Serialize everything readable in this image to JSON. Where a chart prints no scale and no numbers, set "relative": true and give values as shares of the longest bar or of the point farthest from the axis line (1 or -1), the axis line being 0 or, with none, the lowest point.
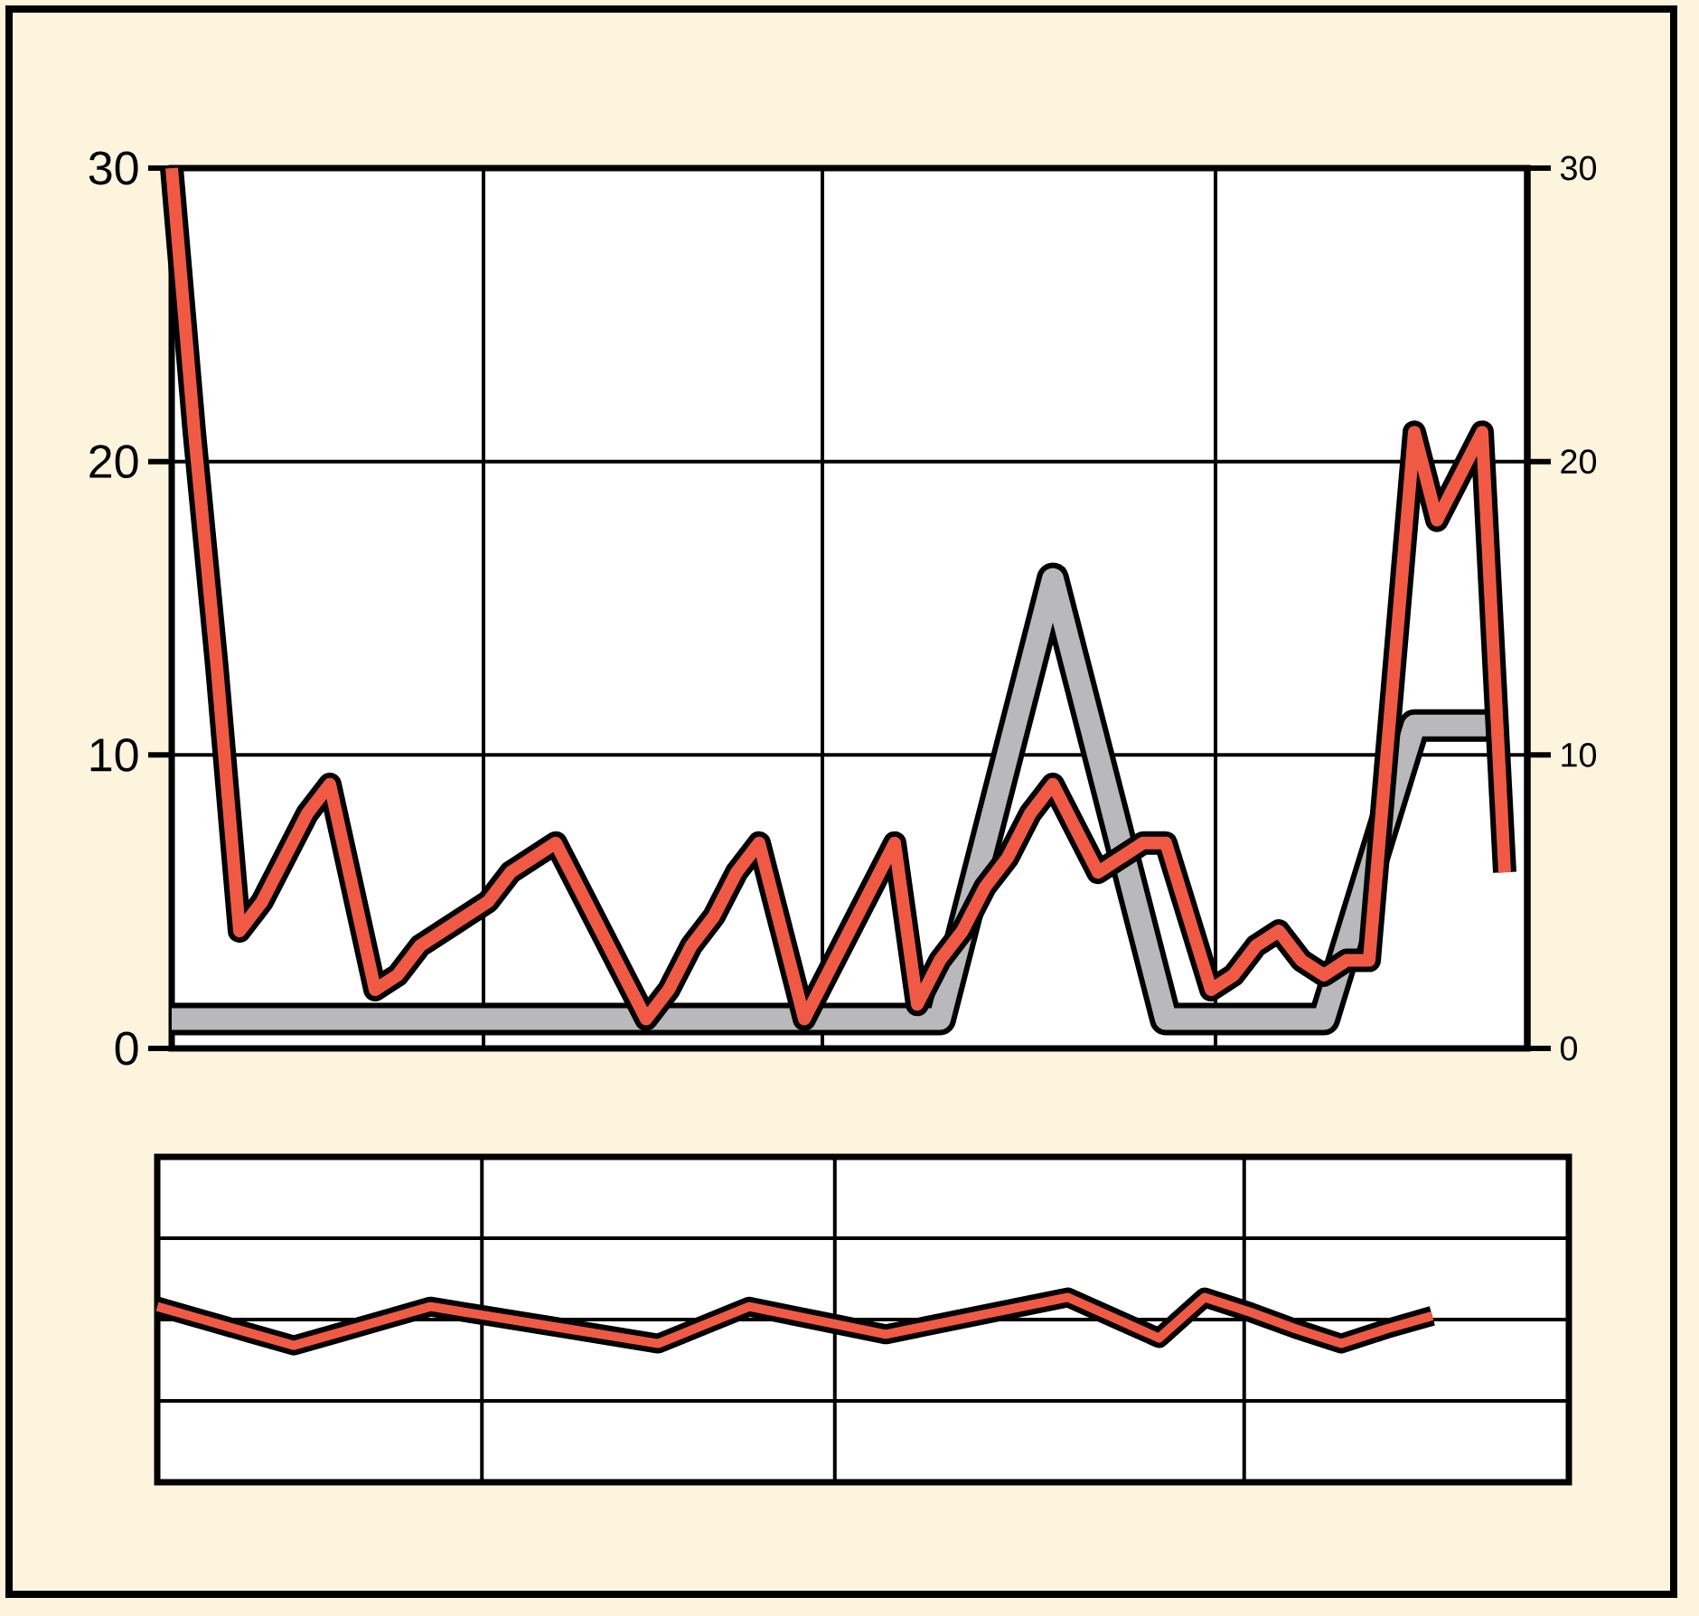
{
  "chart_data": [
    {
      "type": "line",
      "categories": [
        null,
        null,
        null,
        null,
        null,
        null,
        null,
        null,
        null,
        null,
        null,
        null,
        null,
        null,
        null,
        null,
        null,
        null,
        null,
        null,
        null,
        null,
        null,
        null,
        null,
        null,
        null,
        null,
        null,
        null,
        null,
        null,
        null,
        null,
        null,
        null,
        null,
        null,
        null,
        null,
        null,
        null,
        null,
        null,
        null,
        null,
        null,
        null,
        null,
        null,
        null,
        null,
        null,
        null,
        null,
        null,
        null,
        null,
        null,
        null
      ],
      "series": [
        {
          "color": "#b9b8bb",
          "values": [
            1,
            1,
            1,
            1,
            1,
            1,
            1,
            1,
            1,
            1,
            1,
            1,
            1,
            1,
            1,
            1,
            1,
            1,
            1,
            1,
            1,
            1,
            1,
            1,
            1,
            1,
            1,
            1,
            1,
            1,
            1,
            1,
            1,
            1,
            1,
            4,
            7,
            10,
            13,
            16,
            13,
            10,
            7,
            4,
            1,
            1,
            1,
            1,
            1,
            1,
            1,
            1,
            3.5,
            6,
            8.5,
            11,
            11,
            11,
            11,
            11
          ]
        },
        {
          "color": "#f05a44",
          "values": [
            30,
            21,
            13,
            4,
            5,
            6.5,
            8,
            9,
            5.5,
            2,
            2.5,
            3.5,
            4,
            4.5,
            5,
            6,
            6.5,
            7,
            5.5,
            4,
            2.5,
            1,
            2,
            3.5,
            4.5,
            6,
            7,
            4,
            1,
            2.5,
            4,
            5.5,
            7,
            1.5,
            3,
            4,
            5.5,
            6.5,
            8,
            9,
            7.5,
            6,
            6.5,
            7,
            7,
            4.5,
            2,
            2.5,
            3.5,
            4,
            3,
            2.5,
            3,
            3,
            12,
            21,
            18,
            19.5,
            21,
            6
          ]
        }
      ],
      "ylim": [
        0,
        30
      ],
      "yticks": [
        0,
        10,
        20,
        30
      ],
      "y2lim": [
        0,
        30
      ],
      "y2ticks": [
        0,
        10,
        20,
        30
      ],
      "grid": true
    },
    {
      "type": "line",
      "relative": true,
      "categories": [
        null,
        null,
        null,
        null,
        null,
        null,
        null,
        null,
        null,
        null,
        null,
        null,
        null,
        null,
        null,
        null,
        null,
        null,
        null,
        null,
        null,
        null,
        null,
        null,
        null,
        null,
        null,
        null,
        null
      ],
      "color": "#f05a44",
      "values": [
        0.95,
        0.88,
        0.81,
        0.74,
        0.81,
        0.88,
        0.95,
        0.91,
        0.87,
        0.83,
        0.79,
        0.75,
        0.85,
        0.95,
        0.9,
        0.85,
        0.8,
        0.85,
        0.9,
        0.95,
        1,
        0.89,
        0.78,
        1,
        0.92,
        0.83,
        0.75,
        0.83,
        0.9
      ],
      "grid": true
    }
  ]
}
